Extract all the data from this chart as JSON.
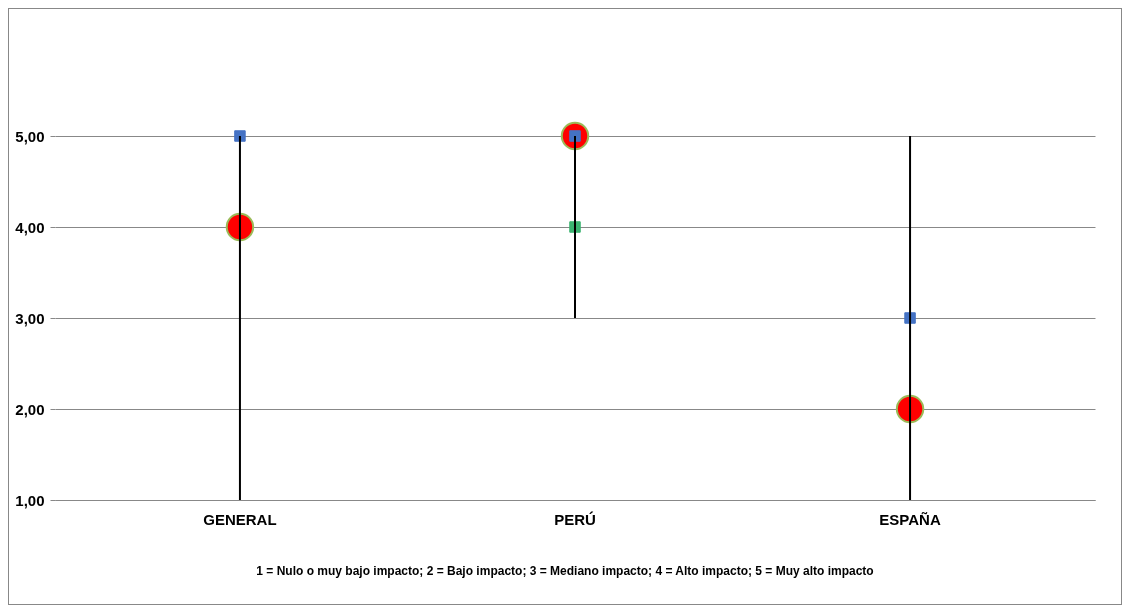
{
  "chart_data": {
    "type": "scatter",
    "categories": [
      "GENERAL",
      "PERÚ",
      "ESPAÑA"
    ],
    "series": [
      {
        "type": "bar",
        "color": "#000000",
        "base": [
          1,
          3,
          1
        ],
        "values": [
          4,
          2,
          4
        ]
      },
      {
        "marker": "circle",
        "color": "#ff0000",
        "values": [
          4,
          5,
          2
        ]
      },
      {
        "marker": "square",
        "color": "#3cb371",
        "values": [
          null,
          4,
          null
        ]
      },
      {
        "marker": "square",
        "color": "#4472c4",
        "values": [
          5,
          5,
          3
        ]
      }
    ],
    "ylim": [
      1,
      5
    ],
    "yticks": [
      {
        "value": 1,
        "label": "1,00"
      },
      {
        "value": 2,
        "label": "2,00"
      },
      {
        "value": 3,
        "label": "3,00"
      },
      {
        "value": 4,
        "label": "4,00"
      },
      {
        "value": 5,
        "label": "5,00"
      }
    ],
    "grid": "y",
    "annotations": [
      "1 = Nulo o muy bajo impacto; 2 = Bajo impacto; 3 = Mediano impacto; 4 = Alto impacto; 5 = Muy alto impacto"
    ]
  }
}
